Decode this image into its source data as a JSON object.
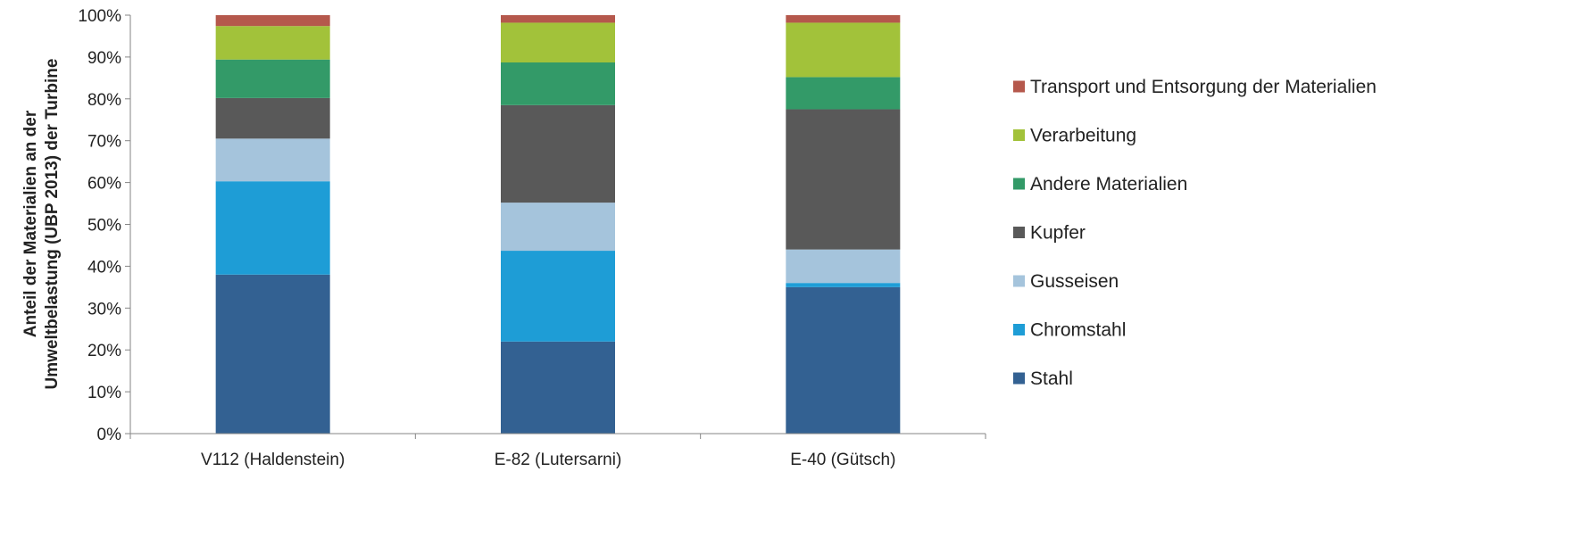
{
  "chart_data": {
    "type": "bar",
    "stacked": true,
    "categories": [
      "V112 (Haldenstein)",
      "E-82 (Lutersarni)",
      "E-40 (Gütsch)"
    ],
    "ylabel": [
      "Anteil der Materialien an der",
      "Umweltbelastung (UBP 2013)  der Turbine"
    ],
    "ylim": [
      0,
      100
    ],
    "y_ticks": [
      "0%",
      "10%",
      "20%",
      "30%",
      "40%",
      "50%",
      "60%",
      "70%",
      "80%",
      "90%",
      "100%"
    ],
    "legend_position": "right",
    "grid": false,
    "series": [
      {
        "name": "Stahl",
        "color": "#336192",
        "values": [
          38,
          22,
          35
        ]
      },
      {
        "name": "Chromstahl",
        "color": "#1e9dd6",
        "values": [
          22.3,
          21.7,
          1
        ]
      },
      {
        "name": "Gusseisen",
        "color": "#a5c4dc",
        "values": [
          10.2,
          11.5,
          8
        ]
      },
      {
        "name": "Kupfer",
        "color": "#595959",
        "values": [
          9.7,
          23.3,
          33.5
        ]
      },
      {
        "name": "Andere Materialien",
        "color": "#339a68",
        "values": [
          9.2,
          10.2,
          7.7
        ]
      },
      {
        "name": "Verarbeitung",
        "color": "#a2c23a",
        "values": [
          8,
          9.5,
          13
        ]
      },
      {
        "name": "Transport und Entsorgung der Materialien",
        "color": "#b5584c",
        "values": [
          2.6,
          1.8,
          1.8
        ]
      }
    ]
  }
}
